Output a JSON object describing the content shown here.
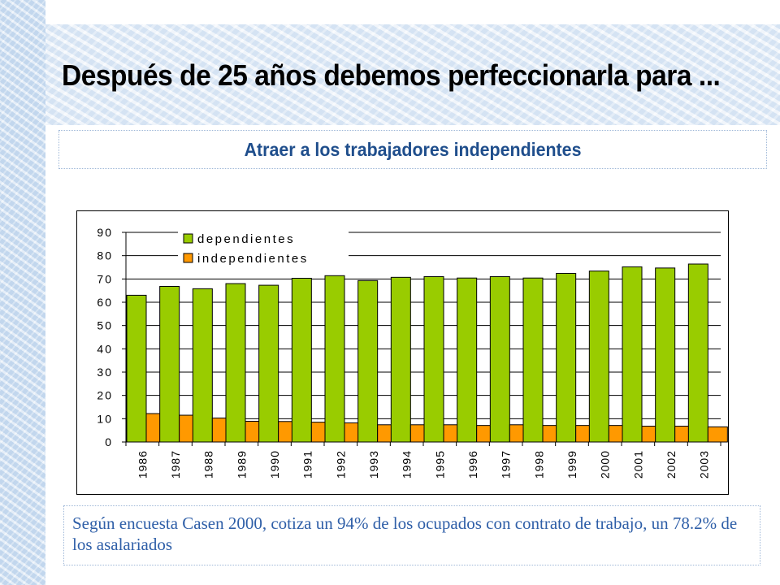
{
  "title": "Después de 25 años debemos perfeccionarla para ...",
  "subtitle": "Atraer a los trabajadores independientes",
  "note": "Según encuesta Casen 2000, cotiza un 94% de los ocupados con contrato de trabajo, un 78.2% de los asalariados",
  "colors": {
    "dependientes": "#99cc00",
    "independientes": "#ff9900",
    "title_text": "#000000",
    "subtitle_text": "#1f4e8c",
    "note_text": "#2f5fa8"
  },
  "chart_data": {
    "type": "bar",
    "categories": [
      "1986",
      "1987",
      "1988",
      "1989",
      "1990",
      "1991",
      "1992",
      "1993",
      "1994",
      "1995",
      "1996",
      "1997",
      "1998",
      "1999",
      "2000",
      "2001",
      "2002",
      "2003"
    ],
    "series": [
      {
        "name": "dependientes",
        "values": [
          63.0,
          66.8,
          65.8,
          68.0,
          67.3,
          70.3,
          71.4,
          69.3,
          70.7,
          71.0,
          70.4,
          71.0,
          70.4,
          72.4,
          73.4,
          75.2,
          74.7,
          76.4
        ]
      },
      {
        "name": "independientes",
        "values": [
          12.2,
          11.5,
          10.3,
          8.9,
          8.8,
          8.5,
          8.2,
          7.4,
          7.4,
          7.4,
          7.1,
          7.4,
          7.1,
          7.1,
          7.1,
          6.8,
          6.8,
          6.5
        ]
      }
    ],
    "yticks": [
      "0",
      "10",
      "20",
      "30",
      "40",
      "50",
      "60",
      "70",
      "80",
      "90"
    ],
    "ylim": [
      0,
      90
    ],
    "grid": true,
    "legend_position": "top-left",
    "xlabel": "",
    "ylabel": ""
  }
}
